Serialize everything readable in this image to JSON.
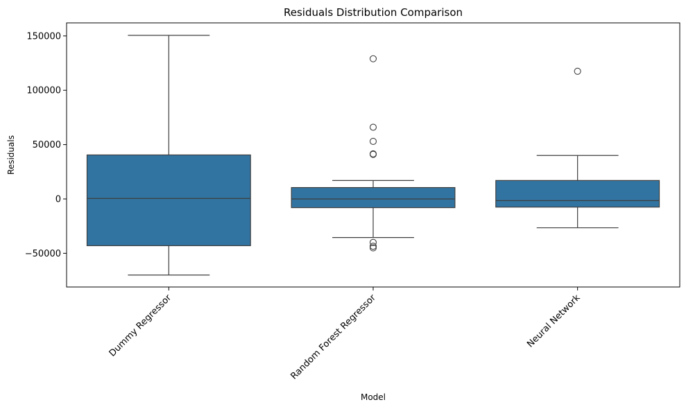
{
  "chart_data": {
    "type": "box",
    "title": "Residuals Distribution Comparison",
    "xlabel": "Model",
    "ylabel": "Residuals",
    "ylim": [
      -81000,
      162000
    ],
    "yticks": [
      -50000,
      0,
      50000,
      100000,
      150000
    ],
    "ytick_labels": [
      "−50000",
      "0",
      "50000",
      "100000",
      "150000"
    ],
    "grid": false,
    "box_color": "#3274a1",
    "line_color": "#3d3d3d",
    "categories": [
      "Dummy Regressor",
      "Random Forest Regressor",
      "Neural Network"
    ],
    "boxes": [
      {
        "whisker_low": -70000,
        "q1": -43000,
        "median": 500,
        "q3": 40500,
        "whisker_high": 150500,
        "outliers": []
      },
      {
        "whisker_low": -35500,
        "q1": -8000,
        "median": 0,
        "q3": 10500,
        "whisker_high": 17000,
        "outliers": [
          129000,
          66000,
          53000,
          41500,
          41000,
          -40000,
          -43500,
          -45000
        ]
      },
      {
        "whisker_low": -26500,
        "q1": -7500,
        "median": -1500,
        "q3": 17000,
        "whisker_high": 40000,
        "outliers": [
          117500
        ]
      }
    ]
  }
}
